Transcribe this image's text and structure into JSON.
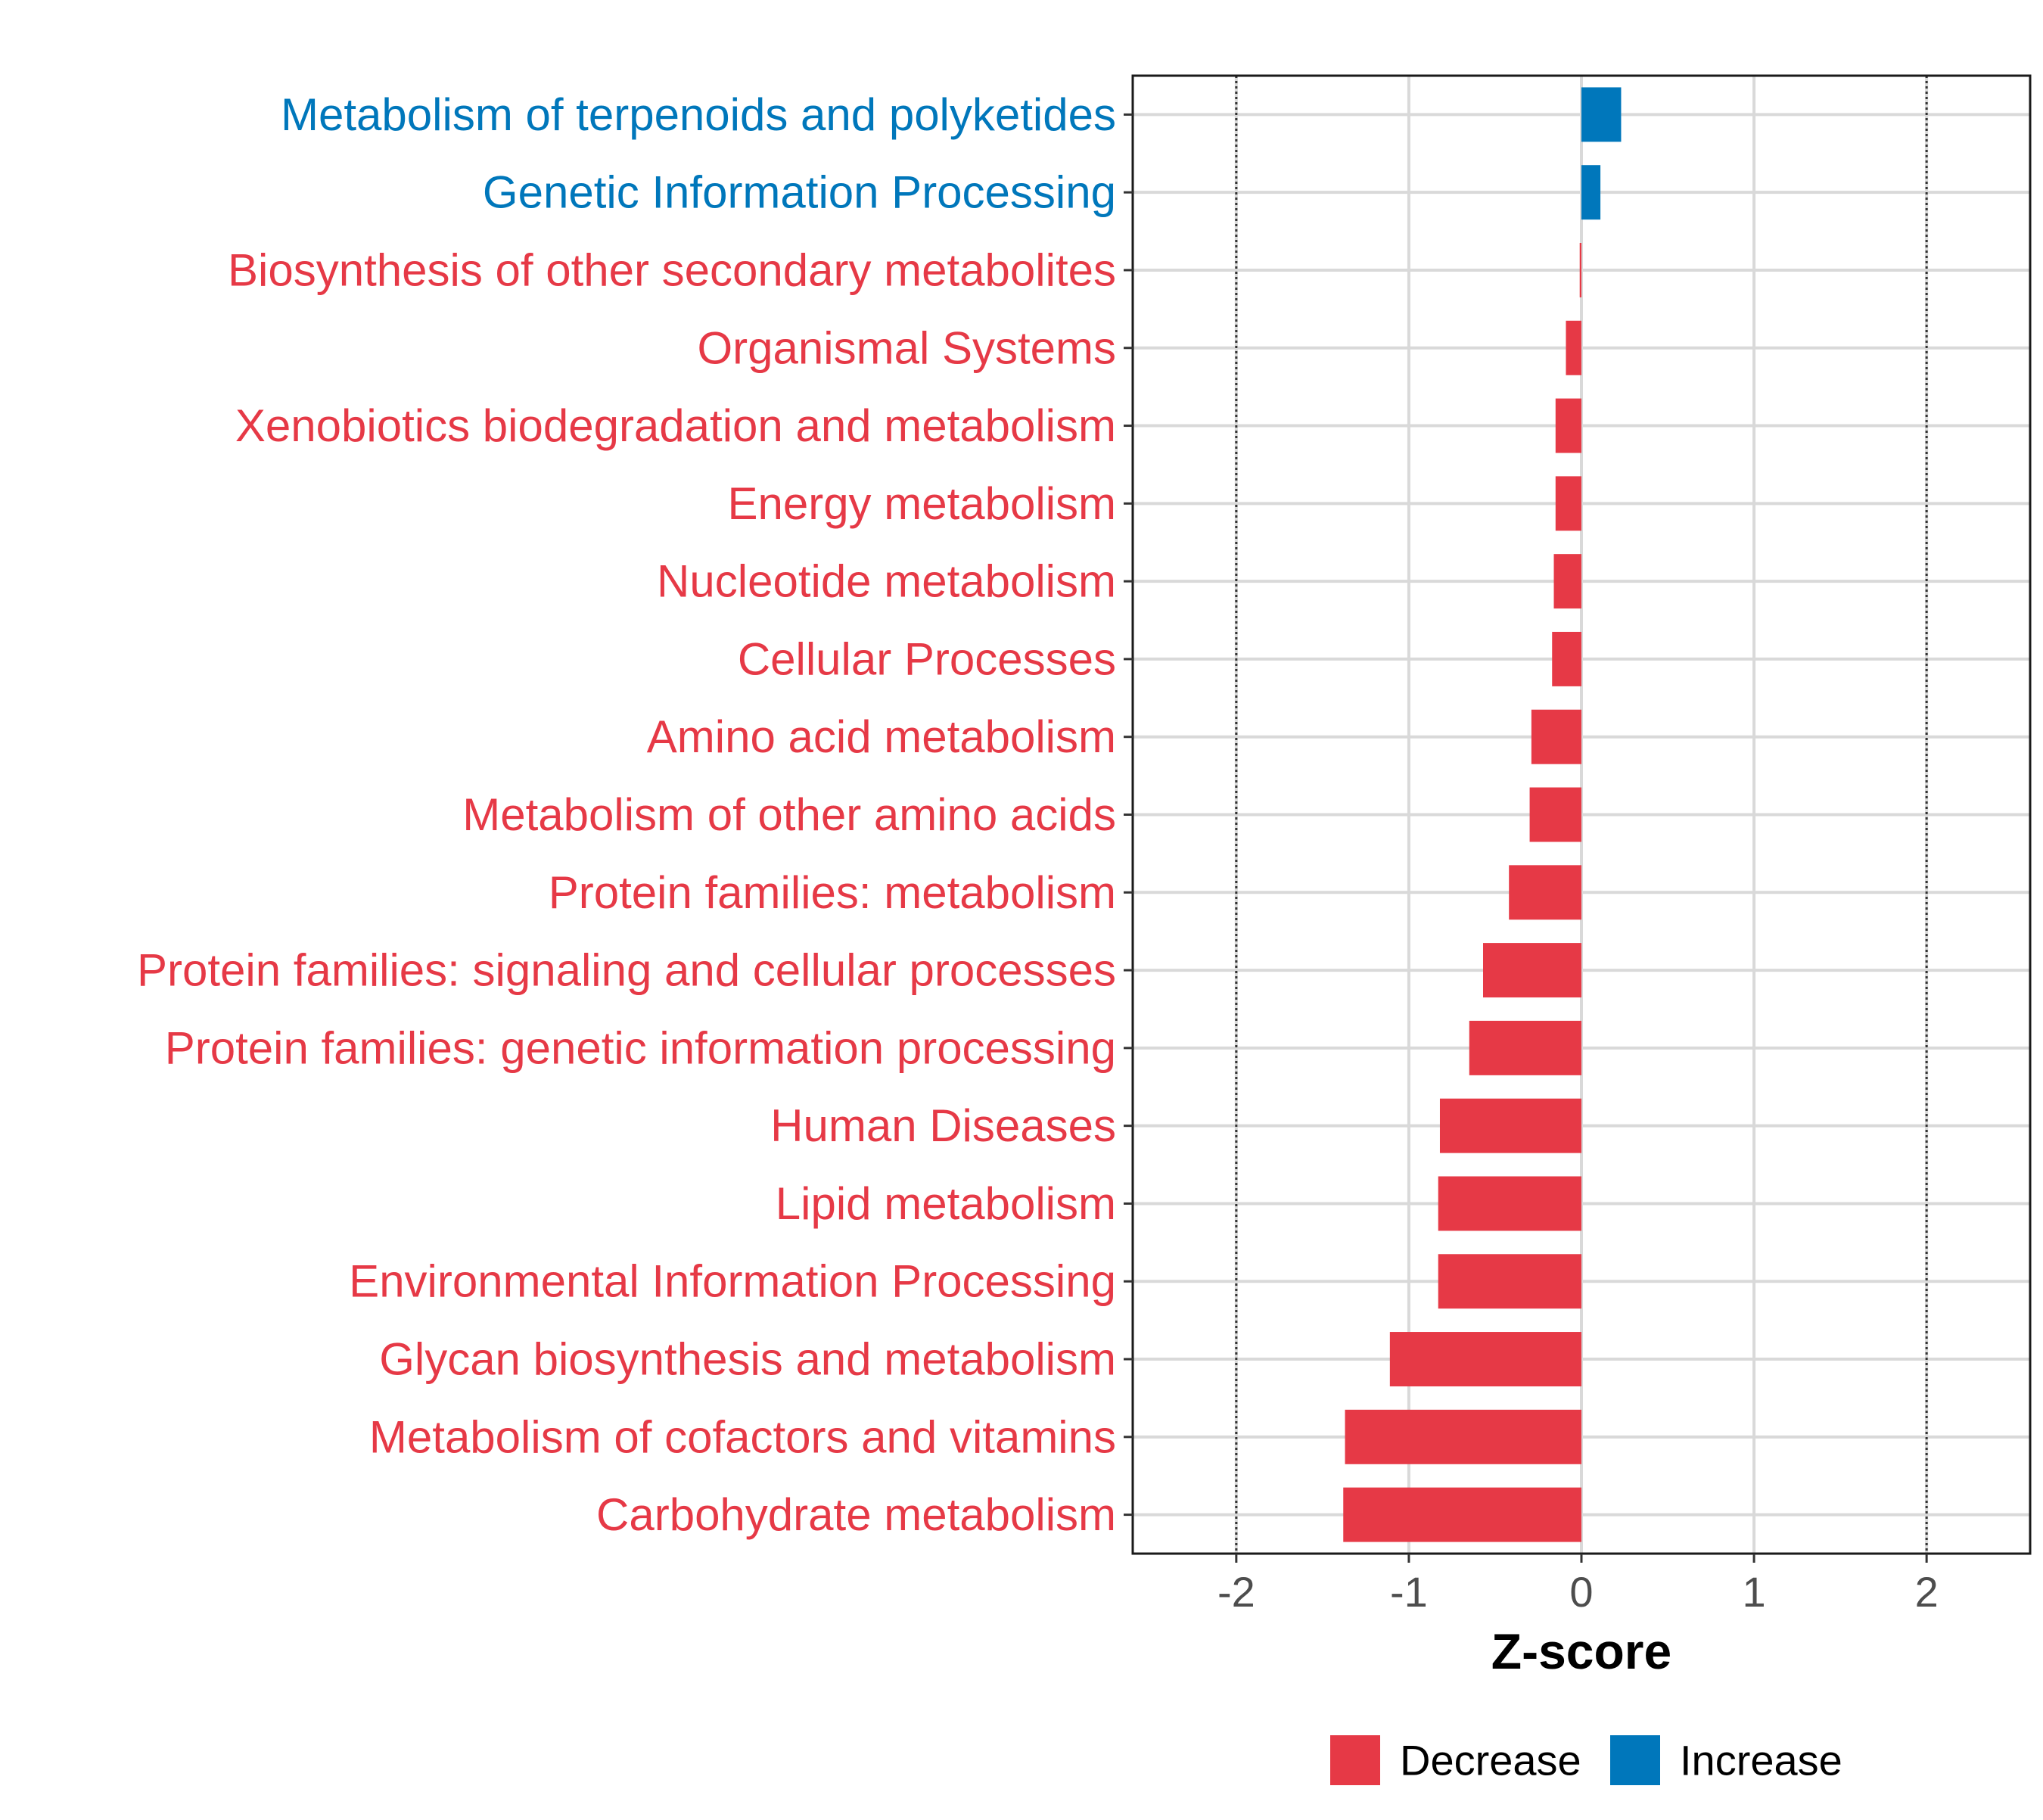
{
  "chart_data": {
    "type": "bar",
    "orientation": "horizontal",
    "title": "",
    "xlabel": "Z-score",
    "ylabel": "",
    "xlim": [
      -2.6,
      2.6
    ],
    "x_ticks": [
      -2,
      -1,
      0,
      1,
      2
    ],
    "x_tick_labels": [
      "-2",
      "-1",
      "0",
      "1",
      "2"
    ],
    "reference_lines": [
      -2,
      2
    ],
    "grid": true,
    "legend_position": "bottom",
    "colors": {
      "Decrease": "#E63946",
      "Increase": "#0077BB"
    },
    "legend": [
      {
        "label": "Decrease",
        "key": "Decrease"
      },
      {
        "label": "Increase",
        "key": "Increase"
      }
    ],
    "categories": [
      "Metabolism of terpenoids and polyketides",
      "Genetic Information Processing",
      "Biosynthesis of other secondary metabolites",
      "Organismal Systems",
      "Xenobiotics biodegradation and metabolism",
      "Energy metabolism",
      "Nucleotide metabolism",
      "Cellular Processes",
      "Amino acid metabolism",
      "Metabolism of other amino acids",
      "Protein families: metabolism",
      "Protein families: signaling and cellular processes",
      "Protein families: genetic information processing",
      "Human Diseases",
      "Lipid metabolism",
      "Environmental Information Processing",
      "Glycan biosynthesis and metabolism",
      "Metabolism of cofactors and vitamins",
      "Carbohydrate metabolism"
    ],
    "values": [
      0.23,
      0.11,
      -0.01,
      -0.09,
      -0.15,
      -0.15,
      -0.16,
      -0.17,
      -0.29,
      -0.3,
      -0.42,
      -0.57,
      -0.65,
      -0.82,
      -0.83,
      -0.83,
      -1.11,
      -1.37,
      -1.38
    ],
    "groups": [
      "Increase",
      "Increase",
      "Decrease",
      "Decrease",
      "Decrease",
      "Decrease",
      "Decrease",
      "Decrease",
      "Decrease",
      "Decrease",
      "Decrease",
      "Decrease",
      "Decrease",
      "Decrease",
      "Decrease",
      "Decrease",
      "Decrease",
      "Decrease",
      "Decrease"
    ]
  }
}
